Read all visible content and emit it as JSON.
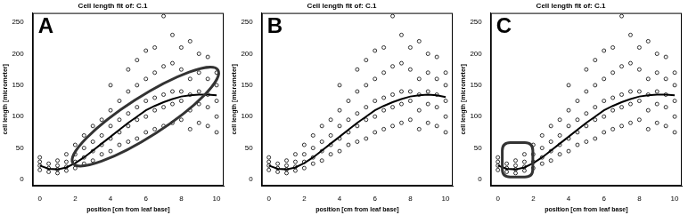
{
  "chart_data": [
    {
      "type": "scatter",
      "title": "Cell length fit of: C.1",
      "annotations": [
        "A"
      ],
      "x_label": "position [cm from leaf base]",
      "y_label": "cell length [micrometer]",
      "xlim": [
        -0.4,
        10.4
      ],
      "xticks": [
        0,
        2,
        4,
        6,
        8,
        10
      ],
      "ylim": [
        -10,
        265
      ],
      "yticks": [
        0,
        50,
        100,
        150,
        200,
        250
      ],
      "grid": false,
      "series": [
        {
          "type": "scatter",
          "marker": "circle",
          "color": "#000000",
          "x": [
            0,
            0,
            0,
            0,
            0.5,
            0.5,
            0.5,
            1,
            1,
            1,
            1,
            1.5,
            1.5,
            1.5,
            1.5,
            2,
            2,
            2,
            2,
            2.5,
            2.5,
            2.5,
            2.5,
            3,
            3,
            3,
            3,
            3.5,
            3.5,
            3.5,
            3.5,
            4,
            4,
            4,
            4,
            4,
            4.5,
            4.5,
            4.5,
            4.5,
            5,
            5,
            5,
            5,
            5,
            5.5,
            5.5,
            5.5,
            5.5,
            5.5,
            6,
            6,
            6,
            6,
            6,
            6.5,
            6.5,
            6.5,
            6.5,
            6.5,
            7,
            7,
            7,
            7,
            7,
            7.5,
            7.5,
            7.5,
            7.5,
            7.5,
            8,
            8,
            8,
            8,
            8,
            8.5,
            8.5,
            8.5,
            8.5,
            8.5,
            9,
            9,
            9,
            9,
            9,
            9.5,
            9.5,
            9.5,
            9.5,
            9.5,
            10,
            10,
            10,
            10,
            10
          ],
          "values": [
            15,
            22,
            28,
            35,
            12,
            18,
            25,
            10,
            16,
            22,
            30,
            14,
            20,
            28,
            40,
            18,
            28,
            40,
            55,
            25,
            35,
            50,
            70,
            30,
            45,
            60,
            85,
            40,
            55,
            70,
            95,
            45,
            65,
            85,
            110,
            150,
            55,
            75,
            95,
            125,
            60,
            85,
            105,
            140,
            175,
            65,
            95,
            115,
            150,
            190,
            75,
            100,
            125,
            160,
            205,
            80,
            110,
            130,
            170,
            210,
            85,
            115,
            135,
            180,
            260,
            90,
            120,
            140,
            185,
            230,
            95,
            125,
            140,
            175,
            210,
            80,
            110,
            135,
            160,
            220,
            90,
            120,
            140,
            170,
            200,
            85,
            115,
            135,
            160,
            195,
            75,
            100,
            125,
            150,
            170
          ]
        },
        {
          "type": "line",
          "line_style": "solid",
          "color": "#000000",
          "x": [
            0,
            0.5,
            1,
            1.5,
            2,
            2.5,
            3,
            3.5,
            4,
            4.5,
            5,
            5.5,
            6,
            6.5,
            7,
            7.5,
            8,
            8.5,
            9,
            9.5,
            10
          ],
          "values": [
            22,
            17,
            16,
            19,
            26,
            35,
            46,
            57,
            68,
            79,
            90,
            100,
            110,
            117,
            123,
            128,
            132,
            134,
            135,
            135,
            134
          ]
        }
      ]
    },
    {
      "type": "scatter",
      "title": "Cell length fit of: C.1",
      "annotations": [
        "B"
      ],
      "x_label": "position [cm from leaf base]",
      "y_label": "cell length [micrometer]",
      "xlim": [
        -0.4,
        10.4
      ],
      "xticks": [
        0,
        2,
        4,
        6,
        8,
        10
      ],
      "ylim": [
        -10,
        265
      ],
      "yticks": [
        0,
        50,
        100,
        150,
        200,
        250
      ],
      "grid": false,
      "series": [
        {
          "type": "scatter",
          "marker": "circle",
          "color": "#000000",
          "x": [
            0,
            0,
            0,
            0,
            0.5,
            0.5,
            0.5,
            1,
            1,
            1,
            1,
            1.5,
            1.5,
            1.5,
            1.5,
            2,
            2,
            2,
            2,
            2.5,
            2.5,
            2.5,
            2.5,
            3,
            3,
            3,
            3,
            3.5,
            3.5,
            3.5,
            3.5,
            4,
            4,
            4,
            4,
            4,
            4.5,
            4.5,
            4.5,
            4.5,
            5,
            5,
            5,
            5,
            5,
            5.5,
            5.5,
            5.5,
            5.5,
            5.5,
            6,
            6,
            6,
            6,
            6,
            6.5,
            6.5,
            6.5,
            6.5,
            6.5,
            7,
            7,
            7,
            7,
            7,
            7.5,
            7.5,
            7.5,
            7.5,
            7.5,
            8,
            8,
            8,
            8,
            8,
            8.5,
            8.5,
            8.5,
            8.5,
            8.5,
            9,
            9,
            9,
            9,
            9,
            9.5,
            9.5,
            9.5,
            9.5,
            9.5,
            10,
            10,
            10,
            10,
            10
          ],
          "values": [
            15,
            22,
            28,
            35,
            12,
            18,
            25,
            10,
            16,
            22,
            30,
            14,
            20,
            28,
            40,
            18,
            28,
            40,
            55,
            25,
            35,
            50,
            70,
            30,
            45,
            60,
            85,
            40,
            55,
            70,
            95,
            45,
            65,
            85,
            110,
            150,
            55,
            75,
            95,
            125,
            60,
            85,
            105,
            140,
            175,
            65,
            95,
            115,
            150,
            190,
            75,
            100,
            125,
            160,
            205,
            80,
            110,
            130,
            170,
            210,
            85,
            115,
            135,
            180,
            260,
            90,
            120,
            140,
            185,
            230,
            95,
            125,
            140,
            175,
            210,
            80,
            110,
            135,
            160,
            220,
            90,
            120,
            140,
            170,
            200,
            85,
            115,
            135,
            160,
            195,
            75,
            100,
            125,
            150,
            170
          ]
        },
        {
          "type": "line",
          "line_style": "solid",
          "color": "#000000",
          "x": [
            0,
            0.5,
            1,
            1.5,
            2,
            2.5,
            3,
            3.5,
            4,
            4.5,
            5,
            5.5,
            6,
            6.5,
            7,
            7.5,
            8,
            8.5,
            9,
            9.5,
            10
          ],
          "values": [
            22,
            17,
            16,
            19,
            26,
            35,
            46,
            57,
            68,
            79,
            90,
            100,
            110,
            117,
            123,
            128,
            132,
            134,
            135,
            134,
            131
          ]
        }
      ]
    },
    {
      "type": "scatter",
      "title": "Cell length fit of: C.1",
      "annotations": [
        "C"
      ],
      "x_label": "position [cm from leaf base]",
      "y_label": "cell length [micrometer]",
      "xlim": [
        -0.4,
        10.4
      ],
      "xticks": [
        0,
        2,
        4,
        6,
        8,
        10
      ],
      "ylim": [
        -10,
        265
      ],
      "yticks": [
        0,
        50,
        100,
        150,
        200,
        250
      ],
      "grid": false,
      "series": [
        {
          "type": "scatter",
          "marker": "circle",
          "color": "#000000",
          "x": [
            0,
            0,
            0,
            0,
            0.5,
            0.5,
            0.5,
            1,
            1,
            1,
            1,
            1.5,
            1.5,
            1.5,
            1.5,
            2,
            2,
            2,
            2,
            2.5,
            2.5,
            2.5,
            2.5,
            3,
            3,
            3,
            3,
            3.5,
            3.5,
            3.5,
            3.5,
            4,
            4,
            4,
            4,
            4,
            4.5,
            4.5,
            4.5,
            4.5,
            5,
            5,
            5,
            5,
            5,
            5.5,
            5.5,
            5.5,
            5.5,
            5.5,
            6,
            6,
            6,
            6,
            6,
            6.5,
            6.5,
            6.5,
            6.5,
            6.5,
            7,
            7,
            7,
            7,
            7,
            7.5,
            7.5,
            7.5,
            7.5,
            7.5,
            8,
            8,
            8,
            8,
            8,
            8.5,
            8.5,
            8.5,
            8.5,
            8.5,
            9,
            9,
            9,
            9,
            9,
            9.5,
            9.5,
            9.5,
            9.5,
            9.5,
            10,
            10,
            10,
            10,
            10
          ],
          "values": [
            15,
            22,
            28,
            35,
            12,
            18,
            25,
            10,
            16,
            22,
            30,
            14,
            20,
            28,
            40,
            18,
            28,
            40,
            55,
            25,
            35,
            50,
            70,
            30,
            45,
            60,
            85,
            40,
            55,
            70,
            95,
            45,
            65,
            85,
            110,
            150,
            55,
            75,
            95,
            125,
            60,
            85,
            105,
            140,
            175,
            65,
            95,
            115,
            150,
            190,
            75,
            100,
            125,
            160,
            205,
            80,
            110,
            130,
            170,
            210,
            85,
            115,
            135,
            180,
            260,
            90,
            120,
            140,
            185,
            230,
            95,
            125,
            140,
            175,
            210,
            80,
            110,
            135,
            160,
            220,
            90,
            120,
            140,
            170,
            200,
            85,
            115,
            135,
            160,
            195,
            75,
            100,
            125,
            150,
            170
          ]
        },
        {
          "type": "line",
          "line_style": "solid",
          "color": "#000000",
          "x": [
            0,
            0.5,
            1,
            1.5,
            2,
            2.5,
            3,
            3.5,
            4,
            4.5,
            5,
            5.5,
            6,
            6.5,
            7,
            7.5,
            8,
            8.5,
            9,
            9.5,
            10
          ],
          "values": [
            22,
            17,
            16,
            19,
            26,
            35,
            46,
            57,
            68,
            79,
            90,
            100,
            110,
            117,
            123,
            128,
            132,
            134,
            135,
            135,
            134
          ]
        }
      ]
    }
  ]
}
